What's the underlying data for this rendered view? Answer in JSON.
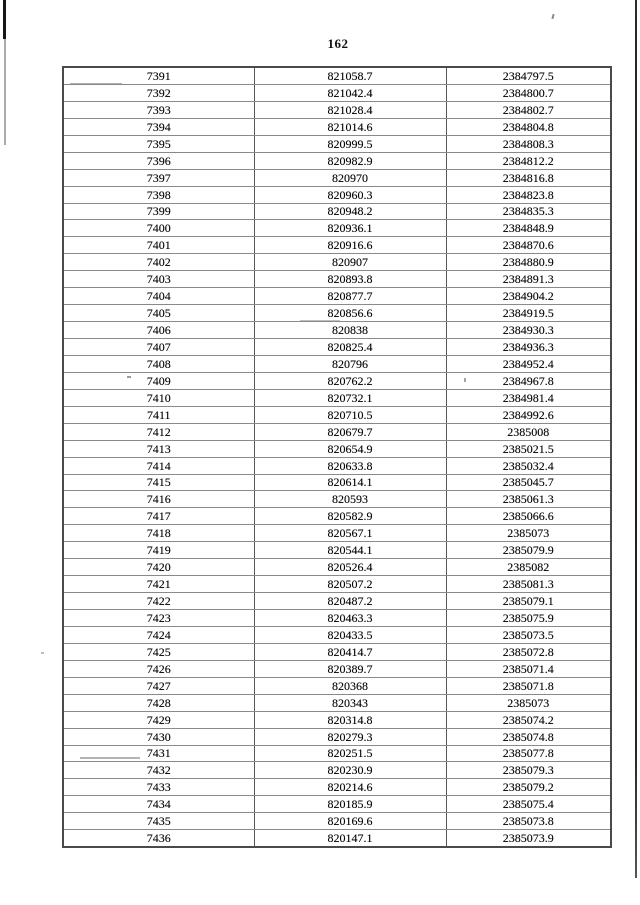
{
  "page": {
    "number": "162"
  },
  "table": {
    "column_keys": [
      "col1",
      "col2",
      "col3"
    ],
    "rows": [
      [
        "7391",
        "821058.7",
        "2384797.5"
      ],
      [
        "7392",
        "821042.4",
        "2384800.7"
      ],
      [
        "7393",
        "821028.4",
        "2384802.7"
      ],
      [
        "7394",
        "821014.6",
        "2384804.8"
      ],
      [
        "7395",
        "820999.5",
        "2384808.3"
      ],
      [
        "7396",
        "820982.9",
        "2384812.2"
      ],
      [
        "7397",
        "820970",
        "2384816.8"
      ],
      [
        "7398",
        "820960.3",
        "2384823.8"
      ],
      [
        "7399",
        "820948.2",
        "2384835.3"
      ],
      [
        "7400",
        "820936.1",
        "2384848.9"
      ],
      [
        "7401",
        "820916.6",
        "2384870.6"
      ],
      [
        "7402",
        "820907",
        "2384880.9"
      ],
      [
        "7403",
        "820893.8",
        "2384891.3"
      ],
      [
        "7404",
        "820877.7",
        "2384904.2"
      ],
      [
        "7405",
        "820856.6",
        "2384919.5"
      ],
      [
        "7406",
        "820838",
        "2384930.3"
      ],
      [
        "7407",
        "820825.4",
        "2384936.3"
      ],
      [
        "7408",
        "820796",
        "2384952.4"
      ],
      [
        "7409",
        "820762.2",
        "2384967.8"
      ],
      [
        "7410",
        "820732.1",
        "2384981.4"
      ],
      [
        "7411",
        "820710.5",
        "2384992.6"
      ],
      [
        "7412",
        "820679.7",
        "2385008"
      ],
      [
        "7413",
        "820654.9",
        "2385021.5"
      ],
      [
        "7414",
        "820633.8",
        "2385032.4"
      ],
      [
        "7415",
        "820614.1",
        "2385045.7"
      ],
      [
        "7416",
        "820593",
        "2385061.3"
      ],
      [
        "7417",
        "820582.9",
        "2385066.6"
      ],
      [
        "7418",
        "820567.1",
        "2385073"
      ],
      [
        "7419",
        "820544.1",
        "2385079.9"
      ],
      [
        "7420",
        "820526.4",
        "2385082"
      ],
      [
        "7421",
        "820507.2",
        "2385081.3"
      ],
      [
        "7422",
        "820487.2",
        "2385079.1"
      ],
      [
        "7423",
        "820463.3",
        "2385075.9"
      ],
      [
        "7424",
        "820433.5",
        "2385073.5"
      ],
      [
        "7425",
        "820414.7",
        "2385072.8"
      ],
      [
        "7426",
        "820389.7",
        "2385071.4"
      ],
      [
        "7427",
        "820368",
        "2385071.8"
      ],
      [
        "7428",
        "820343",
        "2385073"
      ],
      [
        "7429",
        "820314.8",
        "2385074.2"
      ],
      [
        "7430",
        "820279.3",
        "2385074.8"
      ],
      [
        "7431",
        "820251.5",
        "2385077.8"
      ],
      [
        "7432",
        "820230.9",
        "2385079.3"
      ],
      [
        "7433",
        "820214.6",
        "2385079.2"
      ],
      [
        "7434",
        "820185.9",
        "2385075.4"
      ],
      [
        "7435",
        "820169.6",
        "2385073.8"
      ],
      [
        "7436",
        "820147.1",
        "2385073.9"
      ]
    ]
  }
}
